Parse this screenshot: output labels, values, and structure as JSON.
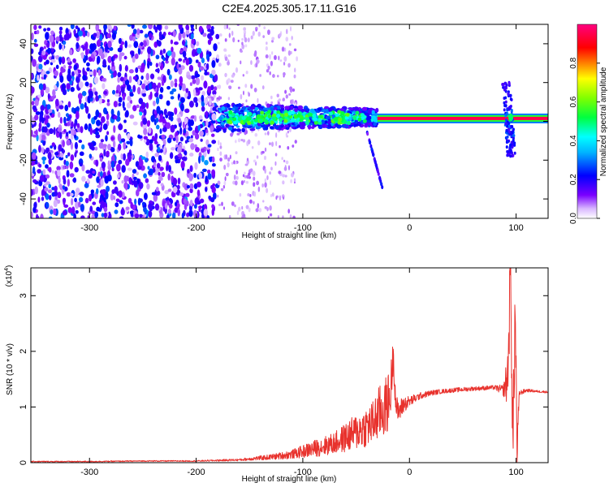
{
  "title": "C2E4.2025.305.17.11.G16",
  "chart_data": [
    {
      "type": "heatmap",
      "xlabel": "Height of straight line (km)",
      "ylabel": "Frequency (Hz)",
      "xlim": [
        -355,
        130
      ],
      "ylim": [
        -50,
        50
      ],
      "xticks": [
        -300,
        -200,
        -100,
        0,
        100
      ],
      "yticks": [
        -40,
        -20,
        0,
        20,
        40
      ],
      "xtick_labels": [
        "-300",
        "-200",
        "-100",
        "0",
        "100"
      ],
      "ytick_labels": [
        "-40",
        "-20",
        "0",
        "20",
        "40"
      ],
      "colorbar": {
        "label": "Normalized spectral amplitude",
        "range": [
          0,
          1
        ],
        "ticks": [
          0.0,
          0.2,
          0.4,
          0.6,
          0.8
        ],
        "tick_labels": [
          "0.0",
          "0.2",
          "0.4",
          "0.6",
          "0.8"
        ],
        "colors": [
          "#ffffff",
          "#7a00ff",
          "#0000ff",
          "#00ffff",
          "#00ff00",
          "#ffff00",
          "#ff0000",
          "#ff0080"
        ]
      },
      "features": {
        "noise_region_x": [
          -355,
          -180
        ],
        "noise_amplitude": 0.25,
        "band_x": [
          -180,
          -30
        ],
        "band_freq": 2,
        "carrier_x": [
          -30,
          130
        ],
        "carrier_freq": 1.5,
        "carrier_amplitude": 0.95,
        "burst_x": 95
      }
    },
    {
      "type": "line",
      "xlabel": "Height of straight line (km)",
      "ylabel": "SNR (10 * v/v)",
      "yscale_label": "(x10",
      "yscale_exp": "4",
      "yscale_close": ")",
      "xlim": [
        -355,
        130
      ],
      "ylim": [
        0,
        3.5
      ],
      "xticks": [
        -300,
        -200,
        -100,
        0,
        100
      ],
      "yticks": [
        0,
        1,
        2,
        3
      ],
      "xtick_labels": [
        "-300",
        "-200",
        "-100",
        "0",
        "100"
      ],
      "ytick_labels": [
        "0",
        "1",
        "2",
        "3"
      ],
      "series": [
        {
          "color": "#e8322d",
          "x": [
            -355,
            -300,
            -250,
            -200,
            -160,
            -130,
            -110,
            -90,
            -70,
            -55,
            -45,
            -35,
            -28,
            -22,
            -18,
            -15,
            -13,
            -11,
            -9,
            -5,
            0,
            10,
            20,
            30,
            40,
            60,
            80,
            88,
            92,
            95,
            97,
            99,
            101,
            103,
            110,
            120,
            130
          ],
          "y": [
            0.02,
            0.02,
            0.03,
            0.03,
            0.05,
            0.1,
            0.15,
            0.25,
            0.35,
            0.5,
            0.6,
            0.7,
            0.9,
            1.0,
            1.2,
            2.0,
            1.1,
            0.9,
            0.95,
            1.05,
            1.1,
            1.2,
            1.25,
            1.28,
            1.3,
            1.33,
            1.35,
            1.3,
            1.5,
            3.5,
            0.15,
            2.8,
            0.2,
            1.25,
            1.3,
            1.28,
            1.27
          ],
          "noise": [
            0.01,
            0.01,
            0.01,
            0.01,
            0.02,
            0.05,
            0.08,
            0.15,
            0.2,
            0.3,
            0.35,
            0.4,
            0.5,
            0.55,
            0.5,
            0.3,
            0.3,
            0.2,
            0.2,
            0.15,
            0.1,
            0.06,
            0.05,
            0.04,
            0.04,
            0.04,
            0.04,
            0.1,
            0.5,
            0.8,
            0.8,
            0.8,
            0.5,
            0.05,
            0.03,
            0.02,
            0.02
          ]
        }
      ]
    }
  ]
}
